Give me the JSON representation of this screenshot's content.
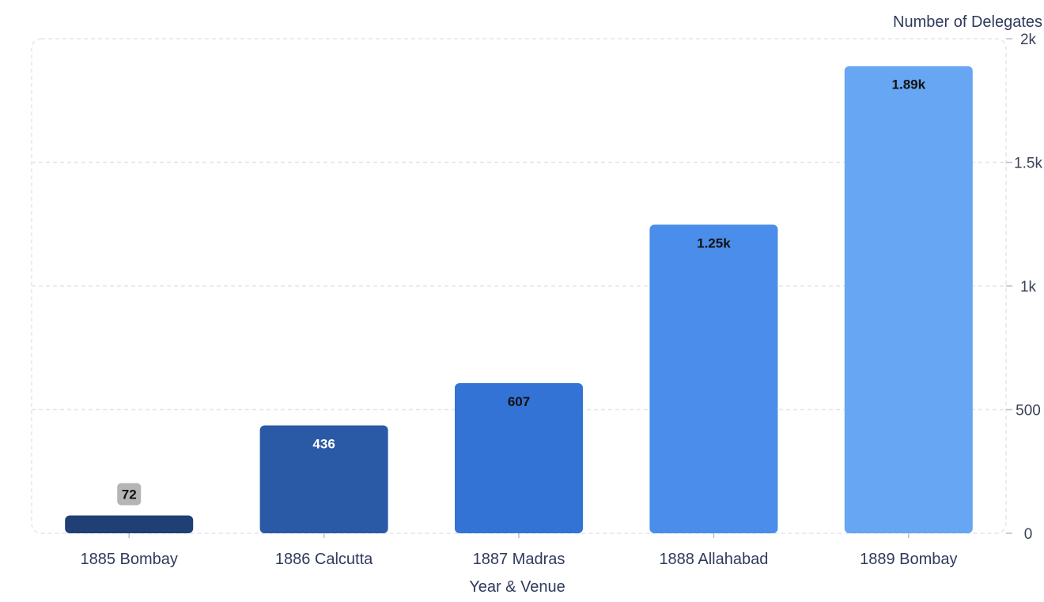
{
  "chart_data": {
    "type": "bar",
    "categories": [
      "1885 Bombay",
      "1886 Calcutta",
      "1887 Madras",
      "1888 Allahabad",
      "1889 Bombay"
    ],
    "values": [
      72,
      436,
      607,
      1248,
      1889
    ],
    "value_labels": [
      "72",
      "436",
      "607",
      "1.25k",
      "1.89k"
    ],
    "bar_colors": [
      "#1f3f75",
      "#2a5aa5",
      "#3373d6",
      "#4a8dea",
      "#66a6f2"
    ],
    "xlabel": "Year & Venue",
    "ylabel": "Number of Delegates",
    "ylim": [
      0,
      2000
    ],
    "yticks": [
      0,
      500,
      1000,
      1500,
      2000
    ],
    "ytick_labels": [
      "0",
      "500",
      "1k",
      "1.5k",
      "2k"
    ],
    "y_axis_side": "right",
    "grid": true
  }
}
